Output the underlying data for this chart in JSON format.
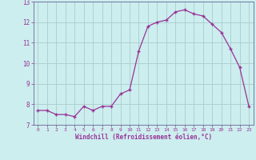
{
  "x": [
    0,
    1,
    2,
    3,
    4,
    5,
    6,
    7,
    8,
    9,
    10,
    11,
    12,
    13,
    14,
    15,
    16,
    17,
    18,
    19,
    20,
    21,
    22,
    23
  ],
  "y": [
    7.7,
    7.7,
    7.5,
    7.5,
    7.4,
    7.9,
    7.7,
    7.9,
    7.9,
    8.5,
    8.7,
    10.6,
    11.8,
    12.0,
    12.1,
    12.5,
    12.6,
    12.4,
    12.3,
    11.9,
    11.5,
    10.7,
    9.8,
    7.9
  ],
  "line_color": "#993399",
  "marker_color": "#993399",
  "bg_color": "#cceeee",
  "grid_color": "#aacccc",
  "axis_color": "#666699",
  "tick_color": "#993399",
  "xlabel": "Windchill (Refroidissement éolien,°C)",
  "ylim": [
    7,
    13
  ],
  "xlim": [
    -0.5,
    23.5
  ],
  "yticks": [
    7,
    8,
    9,
    10,
    11,
    12,
    13
  ],
  "xticks": [
    0,
    1,
    2,
    3,
    4,
    5,
    6,
    7,
    8,
    9,
    10,
    11,
    12,
    13,
    14,
    15,
    16,
    17,
    18,
    19,
    20,
    21,
    22,
    23
  ]
}
